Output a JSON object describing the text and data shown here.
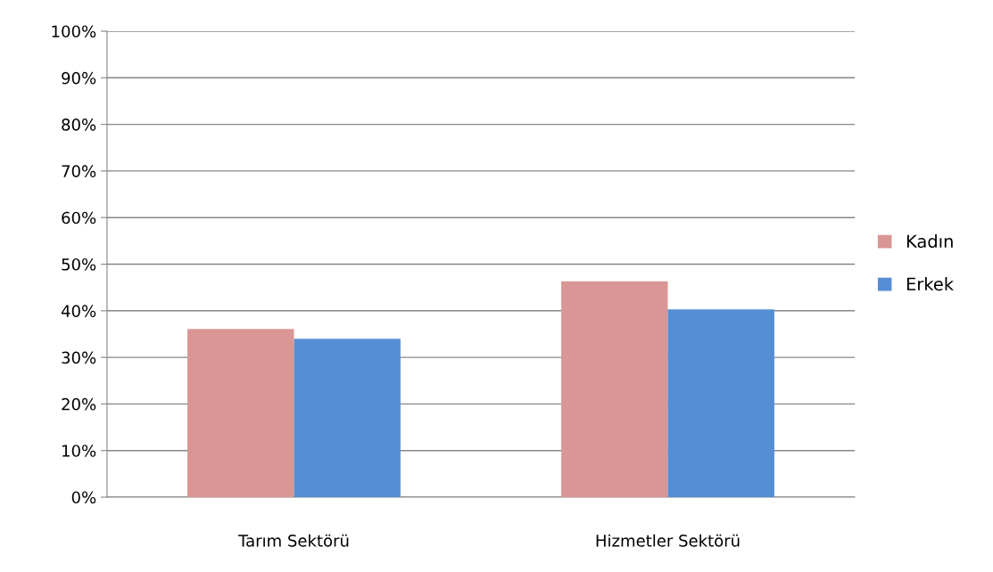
{
  "chart_data": {
    "type": "bar",
    "categories": [
      "Tarım Sektörü",
      "Hizmetler Sektörü"
    ],
    "series": [
      {
        "name": "Kadın",
        "color": "#d99694",
        "values": [
          36.1,
          46.3
        ]
      },
      {
        "name": "Erkek",
        "color": "#558ed5",
        "values": [
          34.0,
          40.3
        ]
      }
    ],
    "ylim": [
      0,
      100
    ],
    "yticks": [
      {
        "value": 0,
        "label": "0%"
      },
      {
        "value": 10,
        "label": "10%"
      },
      {
        "value": 20,
        "label": "20%"
      },
      {
        "value": 30,
        "label": "30%"
      },
      {
        "value": 40,
        "label": "40%"
      },
      {
        "value": 50,
        "label": "50%"
      },
      {
        "value": 60,
        "label": "60%"
      },
      {
        "value": 70,
        "label": "70%"
      },
      {
        "value": 80,
        "label": "80%"
      },
      {
        "value": 90,
        "label": "90%"
      },
      {
        "value": 100,
        "label": "100%"
      }
    ],
    "grid": "y",
    "legend": "right"
  }
}
